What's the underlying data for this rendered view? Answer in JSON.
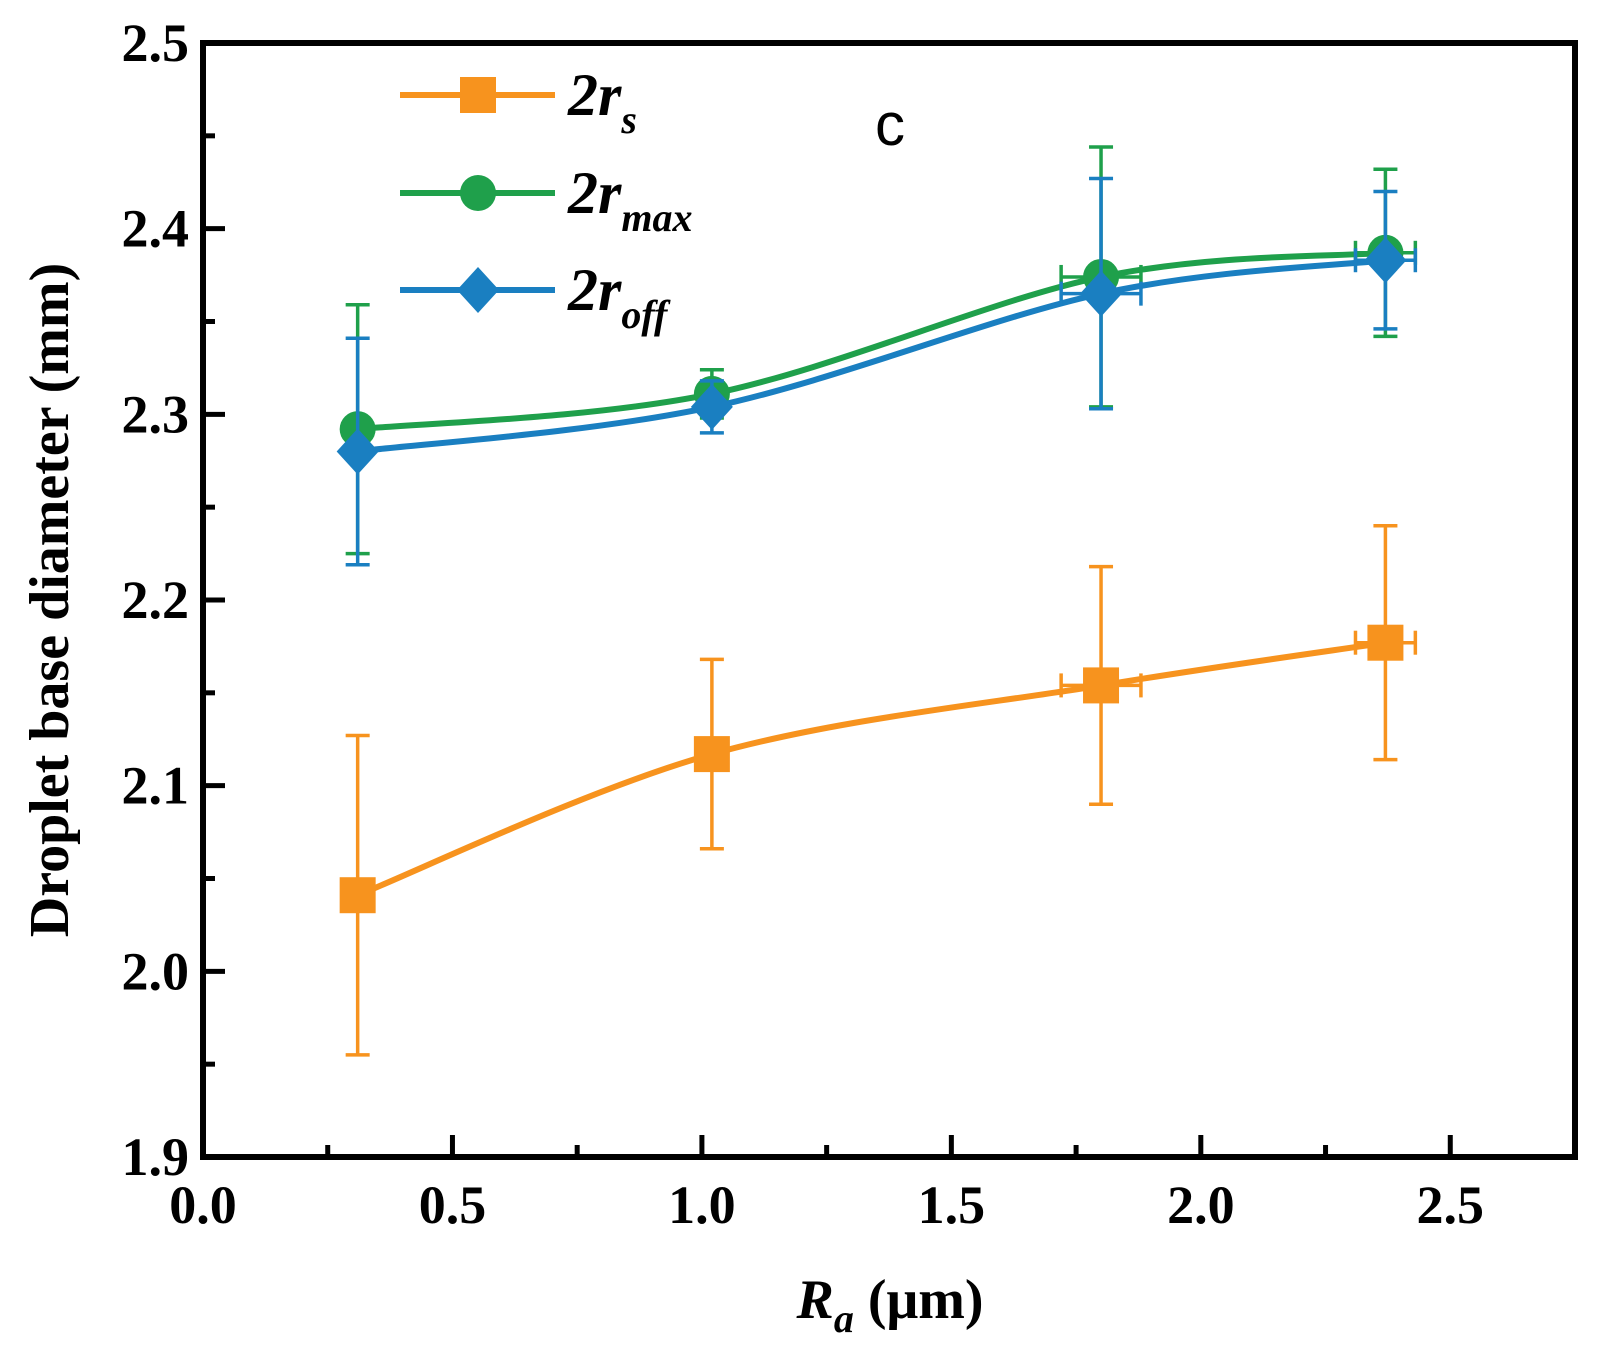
{
  "chart_data": {
    "type": "line",
    "panel_label": "c",
    "xlabel": {
      "main": "R",
      "sub": "a",
      "unit": " (μm)"
    },
    "ylabel": "Droplet base diameter (mm)",
    "xlim": [
      0.0,
      2.75
    ],
    "ylim": [
      1.9,
      2.5
    ],
    "xticks": [
      "0.0",
      "0.5",
      "1.0",
      "1.5",
      "2.0",
      "2.5"
    ],
    "yticks": [
      "1.9",
      "2.0",
      "2.1",
      "2.2",
      "2.3",
      "2.4",
      "2.5"
    ],
    "legend_position": "top-left",
    "series": [
      {
        "name": "2r",
        "sub": "s",
        "color": "#f7931e",
        "marker": "square",
        "x": [
          0.31,
          1.02,
          1.8,
          2.37
        ],
        "y": [
          2.041,
          2.117,
          2.154,
          2.177
        ],
        "y_err": [
          0.086,
          0.051,
          0.064,
          0.063
        ],
        "x_err": [
          0.0,
          0.0,
          0.08,
          0.06
        ]
      },
      {
        "name": "2r",
        "sub": "max",
        "color": "#1fa04b",
        "marker": "circle",
        "x": [
          0.31,
          1.02,
          1.8,
          2.37
        ],
        "y": [
          2.292,
          2.311,
          2.374,
          2.387
        ],
        "y_err": [
          0.067,
          0.013,
          0.07,
          0.045
        ],
        "x_err": [
          0.0,
          0.0,
          0.08,
          0.06
        ]
      },
      {
        "name": "2r",
        "sub": "off",
        "color": "#1a7fc1",
        "marker": "diamond",
        "x": [
          0.31,
          1.02,
          1.8,
          2.37
        ],
        "y": [
          2.28,
          2.304,
          2.365,
          2.383
        ],
        "y_err": [
          0.061,
          0.014,
          0.062,
          0.037
        ],
        "x_err": [
          0.0,
          0.0,
          0.08,
          0.06
        ]
      }
    ]
  }
}
